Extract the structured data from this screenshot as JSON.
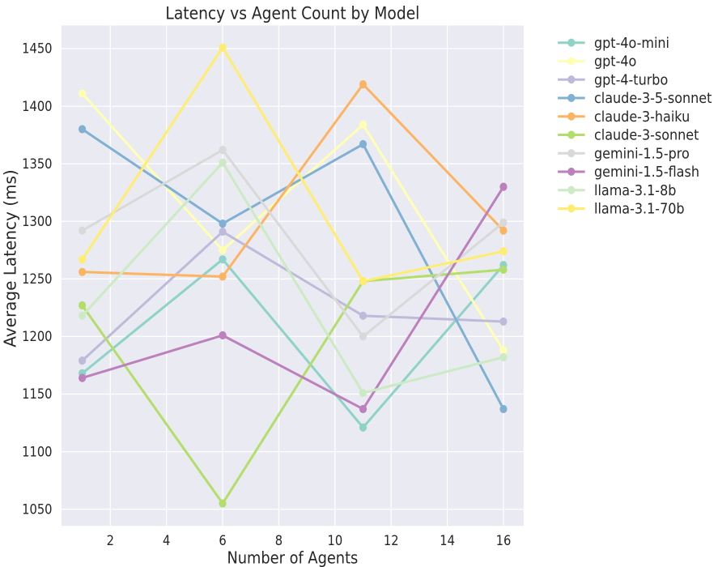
{
  "figure": {
    "background": "#ffffff",
    "plot_background": "#eaeaf2",
    "grid_color": "#ffffff",
    "text_color": "#262626"
  },
  "chart_data": {
    "type": "line",
    "title": "Latency vs Agent Count by Model",
    "xlabel": "Number of Agents",
    "ylabel": "Average Latency (ms)",
    "x": [
      1,
      6,
      11,
      16
    ],
    "series": [
      {
        "name": "gpt-4o-mini",
        "color": "#8dd3c7",
        "values": [
          1168,
          1267,
          1121,
          1262
        ]
      },
      {
        "name": "gpt-4o",
        "color": "#ffffb3",
        "values": [
          1411,
          1275,
          1384,
          1188
        ]
      },
      {
        "name": "gpt-4-turbo",
        "color": "#bebada",
        "values": [
          1179,
          1291,
          1218,
          1213
        ]
      },
      {
        "name": "claude-3-5-sonnet",
        "color": "#80b1d3",
        "values": [
          1380,
          1298,
          1367,
          1137
        ]
      },
      {
        "name": "claude-3-haiku",
        "color": "#fdb462",
        "values": [
          1256,
          1252,
          1419,
          1292
        ]
      },
      {
        "name": "claude-3-sonnet",
        "color": "#b3de69",
        "values": [
          1227,
          1055,
          1248,
          1258
        ]
      },
      {
        "name": "gemini-1.5-pro",
        "color": "#d9d9d9",
        "values": [
          1292,
          1362,
          1200,
          1299
        ]
      },
      {
        "name": "gemini-1.5-flash",
        "color": "#bc80bd",
        "values": [
          1164,
          1201,
          1137,
          1330
        ]
      },
      {
        "name": "llama-3.1-8b",
        "color": "#ccebc5",
        "values": [
          1218,
          1351,
          1151,
          1182
        ]
      },
      {
        "name": "llama-3.1-70b",
        "color": "#ffed6f",
        "values": [
          1267,
          1451,
          1248,
          1274
        ]
      }
    ],
    "xticks": [
      2,
      4,
      6,
      8,
      10,
      12,
      14,
      16
    ],
    "yticks": [
      1050,
      1100,
      1150,
      1200,
      1250,
      1300,
      1350,
      1400,
      1450
    ],
    "xlim": [
      0.25,
      16.75
    ],
    "ylim": [
      1035.2,
      1470.8
    ],
    "grid": true,
    "legend_position": "upper right outside",
    "marker": "o"
  }
}
